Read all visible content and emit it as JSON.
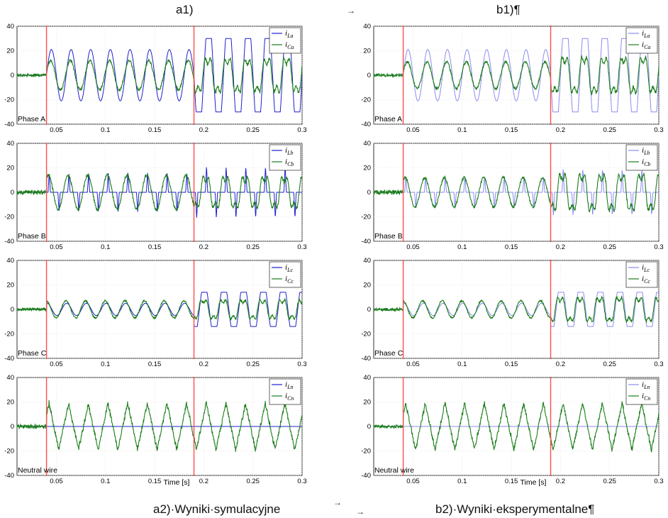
{
  "headers": {
    "left_title": "a1)",
    "right_title": "b1)¶",
    "left_caption": "a2)·Wyniki·symulacyjne",
    "right_caption": "b2)·Wyniki·eksperymentalne¶",
    "tab_arrow": "→"
  },
  "colors": {
    "load_current": "#1f1fcf",
    "load_current_faded": "#8c8cf0",
    "compensator_current": "#1a7d1a",
    "marker": "#ff4d4d",
    "grid": "#d9d9d9"
  },
  "chart_data": [
    {
      "id": "a1-phaseA",
      "type": "line",
      "column": "simulation",
      "panel_label": "Phase A",
      "ylim": [
        -40,
        40
      ],
      "yticks": [
        40,
        20,
        0,
        -20,
        -40
      ],
      "xlim": [
        0.01,
        0.3
      ],
      "xticks": [
        0.05,
        0.1,
        0.15,
        0.2,
        0.25,
        0.3
      ],
      "xlabel": "",
      "events_x": [
        0.04,
        0.19
      ],
      "grid": true,
      "legend_position": "top-right",
      "series": [
        {
          "name": "iLa",
          "label_main": "i",
          "label_sub": "La",
          "color": "#1f1fcf",
          "kind": "load",
          "segments": [
            {
              "x0": 0.01,
              "x1": 0.04,
              "amp": 0,
              "shape": "zero"
            },
            {
              "x0": 0.04,
              "x1": 0.19,
              "amp": 21,
              "shape": "sine"
            },
            {
              "x0": 0.19,
              "x1": 0.3,
              "amp": 30,
              "shape": "flat"
            }
          ]
        },
        {
          "name": "iCa",
          "label_main": "i",
          "label_sub": "Ca",
          "color": "#1a7d1a",
          "kind": "comp",
          "segments": [
            {
              "x0": 0.01,
              "x1": 0.04,
              "amp": 2,
              "shape": "noise"
            },
            {
              "x0": 0.04,
              "x1": 0.19,
              "amp": 12,
              "shape": "sine"
            },
            {
              "x0": 0.19,
              "x1": 0.3,
              "amp": 14,
              "shape": "harm"
            }
          ]
        }
      ]
    },
    {
      "id": "a1-phaseB",
      "type": "line",
      "column": "simulation",
      "panel_label": "Phase B",
      "ylim": [
        -40,
        40
      ],
      "yticks": [
        40,
        20,
        0,
        -20,
        -40
      ],
      "xlim": [
        0.01,
        0.3
      ],
      "xticks": [
        0.05,
        0.1,
        0.15,
        0.2,
        0.25,
        0.3
      ],
      "xlabel": "",
      "events_x": [
        0.04,
        0.19
      ],
      "grid": true,
      "legend_position": "top-right",
      "series": [
        {
          "name": "iLb",
          "label_main": "i",
          "label_sub": "Lb",
          "color": "#1f1fcf",
          "kind": "load",
          "segments": [
            {
              "x0": 0.01,
              "x1": 0.04,
              "amp": 0,
              "shape": "zero"
            },
            {
              "x0": 0.04,
              "x1": 0.19,
              "amp": 16,
              "shape": "spike"
            },
            {
              "x0": 0.19,
              "x1": 0.3,
              "amp": 22,
              "shape": "spike"
            }
          ]
        },
        {
          "name": "iCb",
          "label_main": "i",
          "label_sub": "Cb",
          "color": "#1a7d1a",
          "kind": "comp",
          "segments": [
            {
              "x0": 0.01,
              "x1": 0.04,
              "amp": 3,
              "shape": "noise"
            },
            {
              "x0": 0.04,
              "x1": 0.19,
              "amp": 14,
              "shape": "sine"
            },
            {
              "x0": 0.19,
              "x1": 0.3,
              "amp": 13,
              "shape": "harm"
            }
          ]
        }
      ]
    },
    {
      "id": "a1-phaseC",
      "type": "line",
      "column": "simulation",
      "panel_label": "Phase C",
      "ylim": [
        -40,
        40
      ],
      "yticks": [
        40,
        20,
        0,
        -20,
        -40
      ],
      "xlim": [
        0.01,
        0.3
      ],
      "xticks": [
        0.05,
        0.1,
        0.15,
        0.2,
        0.25,
        0.3
      ],
      "xlabel": "",
      "events_x": [
        0.04,
        0.19
      ],
      "grid": true,
      "legend_position": "top-right",
      "series": [
        {
          "name": "iLc",
          "label_main": "i",
          "label_sub": "Lc",
          "color": "#1f1fcf",
          "kind": "load",
          "segments": [
            {
              "x0": 0.01,
              "x1": 0.04,
              "amp": 0,
              "shape": "zero"
            },
            {
              "x0": 0.04,
              "x1": 0.19,
              "amp": 5,
              "shape": "sine"
            },
            {
              "x0": 0.19,
              "x1": 0.3,
              "amp": 14,
              "shape": "flat"
            }
          ]
        },
        {
          "name": "iCc",
          "label_main": "i",
          "label_sub": "Cc",
          "color": "#1a7d1a",
          "kind": "comp",
          "segments": [
            {
              "x0": 0.01,
              "x1": 0.04,
              "amp": 2,
              "shape": "noise"
            },
            {
              "x0": 0.04,
              "x1": 0.19,
              "amp": 7,
              "shape": "sine"
            },
            {
              "x0": 0.19,
              "x1": 0.3,
              "amp": 8,
              "shape": "harm"
            }
          ]
        }
      ]
    },
    {
      "id": "a1-neutral",
      "type": "line",
      "column": "simulation",
      "panel_label": "Neutral wire",
      "ylim": [
        -40,
        40
      ],
      "yticks": [
        40,
        20,
        0,
        -20,
        -40
      ],
      "xlim": [
        0.01,
        0.3
      ],
      "xticks": [
        0.05,
        0.1,
        0.15,
        0.2,
        0.25,
        0.3
      ],
      "xlabel": "Time [s]",
      "events_x": [
        0.04,
        0.19
      ],
      "grid": true,
      "legend_position": "top-right",
      "series": [
        {
          "name": "iLn",
          "label_main": "i",
          "label_sub": "Ln",
          "color": "#1f1fcf",
          "kind": "load",
          "segments": [
            {
              "x0": 0.01,
              "x1": 0.3,
              "amp": 0,
              "shape": "zero"
            }
          ]
        },
        {
          "name": "iCn",
          "label_main": "i",
          "label_sub": "Cn",
          "color": "#1a7d1a",
          "kind": "comp",
          "segments": [
            {
              "x0": 0.01,
              "x1": 0.04,
              "amp": 3,
              "shape": "noise"
            },
            {
              "x0": 0.04,
              "x1": 0.3,
              "amp": 19,
              "shape": "triangle"
            }
          ]
        }
      ]
    },
    {
      "id": "b1-phaseA",
      "type": "line",
      "column": "experiment",
      "panel_label": "Phase A",
      "ylim": [
        -40,
        40
      ],
      "yticks": [
        40,
        20,
        0,
        -20,
        -40
      ],
      "xlim": [
        0.01,
        0.3
      ],
      "xticks": [
        0.05,
        0.1,
        0.15,
        0.2,
        0.25,
        0.3
      ],
      "xlabel": "",
      "events_x": [
        0.04,
        0.19
      ],
      "grid": true,
      "legend_position": "top-right",
      "series": [
        {
          "name": "iLa",
          "label_main": "i",
          "label_sub": "La",
          "color": "#8c8cf0",
          "kind": "load",
          "segments": [
            {
              "x0": 0.01,
              "x1": 0.04,
              "amp": 0,
              "shape": "zero"
            },
            {
              "x0": 0.04,
              "x1": 0.19,
              "amp": 21,
              "shape": "sine"
            },
            {
              "x0": 0.19,
              "x1": 0.3,
              "amp": 30,
              "shape": "flat"
            }
          ]
        },
        {
          "name": "iCa",
          "label_main": "i",
          "label_sub": "Ca",
          "color": "#1a7d1a",
          "kind": "comp",
          "segments": [
            {
              "x0": 0.01,
              "x1": 0.04,
              "amp": 2,
              "shape": "noise"
            },
            {
              "x0": 0.04,
              "x1": 0.19,
              "amp": 11,
              "shape": "sine"
            },
            {
              "x0": 0.19,
              "x1": 0.3,
              "amp": 15,
              "shape": "harm"
            }
          ]
        }
      ]
    },
    {
      "id": "b1-phaseB",
      "type": "line",
      "column": "experiment",
      "panel_label": "Phase B",
      "ylim": [
        -40,
        40
      ],
      "yticks": [
        40,
        20,
        0,
        -20,
        -40
      ],
      "xlim": [
        0.01,
        0.3
      ],
      "xticks": [
        0.05,
        0.1,
        0.15,
        0.2,
        0.25,
        0.3
      ],
      "xlabel": "",
      "events_x": [
        0.04,
        0.19
      ],
      "grid": true,
      "legend_position": "top-right",
      "series": [
        {
          "name": "iLb",
          "label_main": "i",
          "label_sub": "Lb",
          "color": "#8c8cf0",
          "kind": "load",
          "segments": [
            {
              "x0": 0.01,
              "x1": 0.04,
              "amp": 0,
              "shape": "zero"
            },
            {
              "x0": 0.04,
              "x1": 0.19,
              "amp": 13,
              "shape": "spike"
            },
            {
              "x0": 0.19,
              "x1": 0.3,
              "amp": 20,
              "shape": "spike"
            }
          ]
        },
        {
          "name": "iCb",
          "label_main": "i",
          "label_sub": "Cb",
          "color": "#1a7d1a",
          "kind": "comp",
          "segments": [
            {
              "x0": 0.01,
              "x1": 0.04,
              "amp": 3,
              "shape": "noise"
            },
            {
              "x0": 0.04,
              "x1": 0.19,
              "amp": 12,
              "shape": "sine"
            },
            {
              "x0": 0.19,
              "x1": 0.3,
              "amp": 15,
              "shape": "harm"
            }
          ]
        }
      ]
    },
    {
      "id": "b1-phaseC",
      "type": "line",
      "column": "experiment",
      "panel_label": "Phase C",
      "ylim": [
        -40,
        40
      ],
      "yticks": [
        40,
        20,
        0,
        -20,
        -40
      ],
      "xlim": [
        0.01,
        0.3
      ],
      "xticks": [
        0.05,
        0.1,
        0.15,
        0.2,
        0.25,
        0.3
      ],
      "xlabel": "",
      "events_x": [
        0.04,
        0.19
      ],
      "grid": true,
      "legend_position": "top-right",
      "series": [
        {
          "name": "iLc",
          "label_main": "i",
          "label_sub": "Lc",
          "color": "#8c8cf0",
          "kind": "load",
          "segments": [
            {
              "x0": 0.01,
              "x1": 0.04,
              "amp": 0,
              "shape": "zero"
            },
            {
              "x0": 0.04,
              "x1": 0.19,
              "amp": 5,
              "shape": "sine"
            },
            {
              "x0": 0.19,
              "x1": 0.3,
              "amp": 14,
              "shape": "flat"
            }
          ]
        },
        {
          "name": "iCc",
          "label_main": "i",
          "label_sub": "Cc",
          "color": "#1a7d1a",
          "kind": "comp",
          "segments": [
            {
              "x0": 0.01,
              "x1": 0.04,
              "amp": 2,
              "shape": "noise"
            },
            {
              "x0": 0.04,
              "x1": 0.19,
              "amp": 7,
              "shape": "sine"
            },
            {
              "x0": 0.19,
              "x1": 0.3,
              "amp": 10,
              "shape": "harm"
            }
          ]
        }
      ]
    },
    {
      "id": "b1-neutral",
      "type": "line",
      "column": "experiment",
      "panel_label": "Neutral wire",
      "ylim": [
        -40,
        40
      ],
      "yticks": [
        40,
        20,
        0,
        -20,
        -40
      ],
      "xlim": [
        0.01,
        0.3
      ],
      "xticks": [
        0.05,
        0.1,
        0.15,
        0.2,
        0.25,
        0.3
      ],
      "xlabel": "Time [s]",
      "events_x": [
        0.04,
        0.19
      ],
      "grid": true,
      "legend_position": "top-right",
      "series": [
        {
          "name": "iLn",
          "label_main": "i",
          "label_sub": "Ln",
          "color": "#8c8cf0",
          "kind": "load",
          "segments": [
            {
              "x0": 0.01,
              "x1": 0.3,
              "amp": 0,
              "shape": "zero"
            }
          ]
        },
        {
          "name": "iCn",
          "label_main": "i",
          "label_sub": "Cn",
          "color": "#1a7d1a",
          "kind": "comp",
          "segments": [
            {
              "x0": 0.01,
              "x1": 0.04,
              "amp": 2,
              "shape": "noise"
            },
            {
              "x0": 0.04,
              "x1": 0.3,
              "amp": 19,
              "shape": "triangle"
            }
          ]
        }
      ]
    }
  ]
}
